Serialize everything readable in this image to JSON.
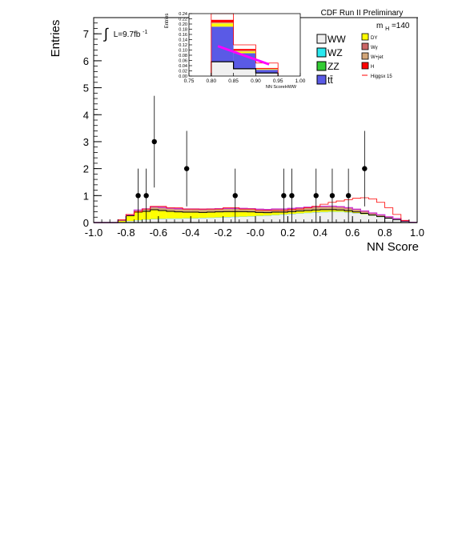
{
  "chart_data": [
    {
      "type": "histogram",
      "xlabel": "NN Score",
      "ylabel": "Entries",
      "xlim": [
        -1.0,
        1.0
      ],
      "ylim": [
        0,
        7.6
      ],
      "x_ticks": [
        "-1.0",
        "-0.8",
        "-0.6",
        "-0.4",
        "-0.2",
        "-0.0",
        "0.2",
        "0.4",
        "0.6",
        "0.8",
        "1.0"
      ],
      "y_ticks": [
        "0",
        "1",
        "2",
        "3",
        "4",
        "5",
        "6",
        "7"
      ],
      "banner": "CDF Run II Preliminary",
      "mass_label": {
        "prefix": "m",
        "sub": "H",
        "suffix": "=140"
      },
      "lumi_label": {
        "text": "L=9.7fb",
        "sup": "-1",
        "integral": "∫"
      },
      "bin_edges": [
        -1.0,
        -0.95,
        -0.9,
        -0.85,
        -0.8,
        -0.75,
        -0.7,
        -0.65,
        -0.6,
        -0.55,
        -0.5,
        -0.45,
        -0.4,
        -0.35,
        -0.3,
        -0.25,
        -0.2,
        -0.15,
        -0.1,
        -0.05,
        0.0,
        0.05,
        0.1,
        0.15,
        0.2,
        0.25,
        0.3,
        0.35,
        0.4,
        0.45,
        0.5,
        0.55,
        0.6,
        0.65,
        0.7,
        0.75,
        0.8,
        0.85,
        0.9,
        0.95,
        1.0
      ],
      "stack": [
        {
          "name": "WW",
          "color": "#f0f0f0",
          "values": [
            0,
            0,
            0,
            0.02,
            0.05,
            0.08,
            0.1,
            0.12,
            0.13,
            0.14,
            0.14,
            0.15,
            0.15,
            0.16,
            0.17,
            0.18,
            0.19,
            0.2,
            0.21,
            0.22,
            0.24,
            0.25,
            0.27,
            0.29,
            0.31,
            0.33,
            0.35,
            0.37,
            0.38,
            0.39,
            0.39,
            0.37,
            0.34,
            0.3,
            0.25,
            0.2,
            0.15,
            0.1,
            0.05,
            0.01
          ]
        },
        {
          "name": "WZ",
          "color": "#29e8ef",
          "values": [
            0,
            0,
            0,
            0,
            0.002,
            0.004,
            0.005,
            0.006,
            0.006,
            0.006,
            0.006,
            0.006,
            0.006,
            0.006,
            0.006,
            0.006,
            0.006,
            0.006,
            0.006,
            0.006,
            0.006,
            0.006,
            0.006,
            0.006,
            0.006,
            0.006,
            0.006,
            0.006,
            0.007,
            0.007,
            0.007,
            0.007,
            0.006,
            0.005,
            0.004,
            0.003,
            0.002,
            0.001,
            0,
            0
          ]
        },
        {
          "name": "ZZ",
          "color": "#33cc33",
          "values": [
            0,
            0,
            0,
            0,
            0.002,
            0.004,
            0.005,
            0.006,
            0.006,
            0.006,
            0.006,
            0.006,
            0.006,
            0.006,
            0.006,
            0.006,
            0.006,
            0.006,
            0.006,
            0.006,
            0.006,
            0.006,
            0.006,
            0.006,
            0.006,
            0.006,
            0.006,
            0.006,
            0.006,
            0.006,
            0.006,
            0.006,
            0.005,
            0.004,
            0.003,
            0.002,
            0.001,
            0.001,
            0,
            0
          ]
        },
        {
          "name": "tt̄",
          "color": "#5a5ae6",
          "values": [
            0,
            0,
            0,
            0,
            0.002,
            0.003,
            0.004,
            0.004,
            0.004,
            0.004,
            0.004,
            0.004,
            0.004,
            0.004,
            0.004,
            0.004,
            0.004,
            0.004,
            0.004,
            0.004,
            0.004,
            0.004,
            0.004,
            0.004,
            0.004,
            0.004,
            0.004,
            0.005,
            0.005,
            0.005,
            0.005,
            0.005,
            0.004,
            0.003,
            0.002,
            0.002,
            0.001,
            0.001,
            0,
            0
          ]
        },
        {
          "name": "DY",
          "color": "#ffff00",
          "values": [
            0,
            0,
            0,
            0.06,
            0.2,
            0.3,
            0.3,
            0.34,
            0.3,
            0.26,
            0.24,
            0.22,
            0.22,
            0.2,
            0.2,
            0.2,
            0.2,
            0.19,
            0.18,
            0.16,
            0.12,
            0.1,
            0.1,
            0.08,
            0.08,
            0.08,
            0.08,
            0.08,
            0.08,
            0.07,
            0.06,
            0.05,
            0.04,
            0.03,
            0.02,
            0.02,
            0.01,
            0.01,
            0,
            0
          ]
        },
        {
          "name": "Wγ",
          "color": "#cc6666",
          "values": [
            0,
            0,
            0,
            0,
            0.004,
            0.006,
            0.008,
            0.01,
            0.01,
            0.01,
            0.01,
            0.01,
            0.01,
            0.01,
            0.01,
            0.01,
            0.01,
            0.01,
            0.01,
            0.01,
            0.01,
            0.01,
            0.01,
            0.01,
            0.01,
            0.01,
            0.01,
            0.01,
            0.01,
            0.01,
            0.01,
            0.01,
            0.008,
            0.006,
            0.005,
            0.004,
            0.003,
            0.002,
            0.001,
            0
          ]
        },
        {
          "name": "W+jet",
          "color": "#d2a679",
          "values": [
            0,
            0,
            0,
            0.01,
            0.03,
            0.06,
            0.08,
            0.09,
            0.1,
            0.1,
            0.1,
            0.1,
            0.1,
            0.1,
            0.1,
            0.1,
            0.1,
            0.1,
            0.1,
            0.1,
            0.1,
            0.1,
            0.1,
            0.1,
            0.1,
            0.1,
            0.1,
            0.1,
            0.1,
            0.1,
            0.09,
            0.08,
            0.07,
            0.06,
            0.05,
            0.04,
            0.03,
            0.02,
            0.01,
            0
          ]
        },
        {
          "name": "H",
          "color": "#ff0000",
          "values": [
            0,
            0,
            0,
            0,
            0.002,
            0.004,
            0.006,
            0.008,
            0.008,
            0.008,
            0.008,
            0.008,
            0.008,
            0.008,
            0.008,
            0.008,
            0.008,
            0.008,
            0.008,
            0.008,
            0.008,
            0.008,
            0.008,
            0.008,
            0.008,
            0.01,
            0.012,
            0.014,
            0.016,
            0.018,
            0.02,
            0.022,
            0.022,
            0.022,
            0.02,
            0.018,
            0.015,
            0.012,
            0.008,
            0
          ]
        }
      ],
      "overlay": {
        "name": "Higgsx 15",
        "color": "#ff0000",
        "values": [
          0,
          0,
          0,
          0.1,
          0.3,
          0.4,
          0.5,
          0.6,
          0.6,
          0.55,
          0.55,
          0.5,
          0.5,
          0.5,
          0.5,
          0.5,
          0.55,
          0.55,
          0.5,
          0.5,
          0.45,
          0.45,
          0.45,
          0.45,
          0.48,
          0.5,
          0.55,
          0.6,
          0.68,
          0.75,
          0.8,
          0.85,
          0.9,
          0.92,
          0.88,
          0.75,
          0.55,
          0.3,
          0.08,
          0
        ]
      },
      "total_line_color": "#cc33cc",
      "data_points": {
        "x": [
          -0.725,
          -0.675,
          -0.625,
          -0.425,
          -0.125,
          0.175,
          0.225,
          0.375,
          0.475,
          0.575,
          0.675
        ],
        "y": [
          1,
          1,
          3,
          2,
          1,
          1,
          1,
          1,
          1,
          1,
          2
        ],
        "err": [
          1.0,
          1.0,
          1.7,
          1.4,
          1.0,
          1.0,
          1.0,
          1.0,
          1.0,
          1.0,
          1.4
        ]
      },
      "legend": {
        "left": [
          "WW",
          "WZ",
          "ZZ",
          "tt̄"
        ],
        "right": [
          "DY",
          "Wγ",
          "W+jet",
          "H",
          "Higgsx 15"
        ]
      }
    },
    {
      "type": "histogram",
      "xlabel": "NN ScoreHWW",
      "ylabel": "Entries",
      "xlim": [
        0.75,
        1.0
      ],
      "ylim": [
        0,
        0.24
      ],
      "x_ticks": [
        "0.75",
        "0.80",
        "0.85",
        "0.90",
        "0.95",
        "1.00"
      ],
      "y_ticks": [
        "0.00",
        "0.02",
        "0.04",
        "0.06",
        "0.08",
        "0.10",
        "0.12",
        "0.14",
        "0.16",
        "0.18",
        "0.20",
        "0.22",
        "0.24"
      ],
      "bin_edges": [
        0.8,
        0.85,
        0.9,
        0.95
      ],
      "stack": [
        {
          "name": "WW",
          "color": "#f0f0f0",
          "values": [
            0.055,
            0.028,
            0.012
          ]
        },
        {
          "name": "tt̄",
          "color": "#5a5ae6",
          "values": [
            0.135,
            0.06,
            0.012
          ]
        },
        {
          "name": "DY",
          "color": "#ffff00",
          "values": [
            0.012,
            0.006,
            0.002
          ]
        },
        {
          "name": "W+jet",
          "color": "#d2a679",
          "values": [
            0.004,
            0.004,
            0.002
          ]
        },
        {
          "name": "H",
          "color": "#ff0000",
          "values": [
            0.01,
            0.006,
            0.003
          ]
        }
      ],
      "overlay": {
        "name": "Higgsx 15",
        "color": "#ff0000",
        "values": [
          0.24,
          0.12,
          0.05
        ]
      },
      "total_line_color": "#ff00ff",
      "total_line": {
        "x": [
          0.815,
          0.93
        ],
        "y": [
          0.115,
          0.045
        ]
      }
    }
  ]
}
